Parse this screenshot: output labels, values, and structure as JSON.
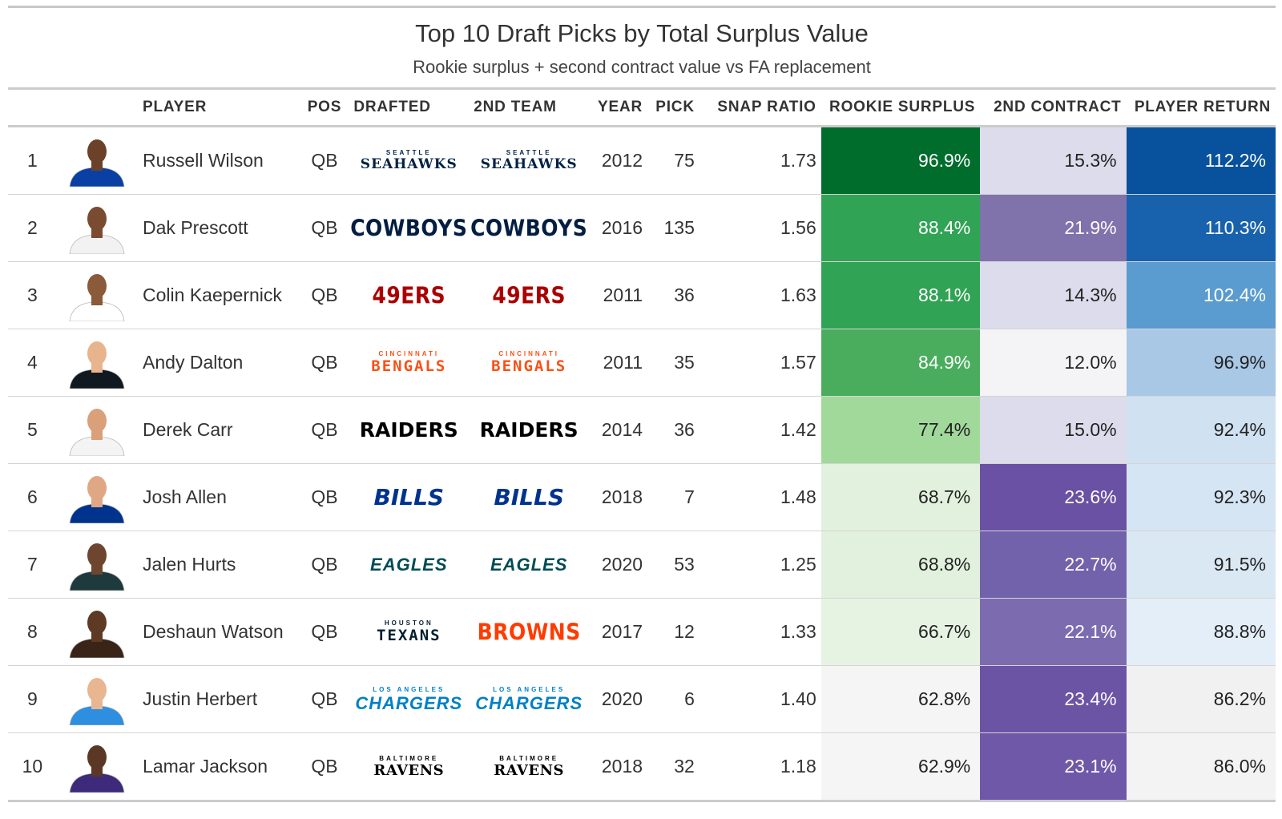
{
  "title": "Top 10 Draft Picks by Total Surplus Value",
  "subtitle": "Rookie surplus + second contract value vs FA replacement",
  "columns": {
    "player": "PLAYER",
    "pos": "POS",
    "drafted": "DRAFTED",
    "second_team": "2ND TEAM",
    "year": "YEAR",
    "pick": "PICK",
    "snap_ratio": "SNAP RATIO",
    "rookie_surplus": "ROOKIE SURPLUS",
    "second_contract": "2ND CONTRACT",
    "player_return": "PLAYER RETURN"
  },
  "teams": {
    "SEA": {
      "super": "SEATTLE",
      "main": "SEAHAWKS",
      "color": "#002244",
      "style": "smallcaps"
    },
    "DAL": {
      "super": "",
      "main": "COWBOYS",
      "color": "#041E42",
      "style": "block"
    },
    "SF": {
      "super": "",
      "main": "49ERS",
      "color": "#AA0000",
      "style": "block"
    },
    "CIN": {
      "super": "CINCINNATI",
      "main": "BENGALS",
      "color": "#FB4F14",
      "style": "wide"
    },
    "LV": {
      "super": "",
      "main": "RAIDERS",
      "color": "#000000",
      "style": "heavy"
    },
    "BUF": {
      "super": "",
      "main": "BILLS",
      "color": "#00338D",
      "style": "heavyitalic"
    },
    "PHI": {
      "super": "",
      "main": "EAGLES",
      "color": "#004C54",
      "style": "italic"
    },
    "HOU": {
      "super": "HOUSTON",
      "main": "TEXANS",
      "color": "#03202F",
      "style": "wide"
    },
    "CLE": {
      "super": "",
      "main": "BROWNS",
      "color": "#FF3C00",
      "style": "block"
    },
    "LAC": {
      "super": "LOS ANGELES",
      "main": "CHARGERS",
      "color": "#0080C6",
      "style": "italic"
    },
    "BAL": {
      "super": "BALTIMORE",
      "main": "RAVENS",
      "color": "#000000",
      "style": "serif"
    }
  },
  "rows": [
    {
      "rank": "1",
      "player": "Russell Wilson",
      "pos": "QB",
      "drafted": "SEA",
      "second_team": "SEA",
      "year": "2012",
      "pick": "75",
      "snap_ratio": "1.73",
      "rookie_surplus": "96.9%",
      "second_contract": "15.3%",
      "player_return": "112.2%",
      "rs_bg": "#006d2c",
      "rs_fg": "#ffffff",
      "sc_bg": "#dcdcec",
      "sc_fg": "#222222",
      "pr_bg": "#08519c",
      "pr_fg": "#ffffff",
      "jersey": "#0a3fa3",
      "skin": "#6b4129"
    },
    {
      "rank": "2",
      "player": "Dak Prescott",
      "pos": "QB",
      "drafted": "DAL",
      "second_team": "DAL",
      "year": "2016",
      "pick": "135",
      "snap_ratio": "1.56",
      "rookie_surplus": "88.4%",
      "second_contract": "21.9%",
      "player_return": "110.3%",
      "rs_bg": "#31a354",
      "rs_fg": "#ffffff",
      "sc_bg": "#8073ac",
      "sc_fg": "#ffffff",
      "pr_bg": "#1862ad",
      "pr_fg": "#ffffff",
      "jersey": "#f2f2f2",
      "skin": "#7a4b30"
    },
    {
      "rank": "3",
      "player": "Colin Kaepernick",
      "pos": "QB",
      "drafted": "SF",
      "second_team": "SF",
      "year": "2011",
      "pick": "36",
      "snap_ratio": "1.63",
      "rookie_surplus": "88.1%",
      "second_contract": "14.3%",
      "player_return": "102.4%",
      "rs_bg": "#31a354",
      "rs_fg": "#ffffff",
      "sc_bg": "#dcdcec",
      "sc_fg": "#222222",
      "pr_bg": "#5a9bd0",
      "pr_fg": "#ffffff",
      "jersey": "#ffffff",
      "skin": "#8a5a3a"
    },
    {
      "rank": "4",
      "player": "Andy Dalton",
      "pos": "QB",
      "drafted": "CIN",
      "second_team": "CIN",
      "year": "2011",
      "pick": "35",
      "snap_ratio": "1.57",
      "rookie_surplus": "84.9%",
      "second_contract": "12.0%",
      "player_return": "96.9%",
      "rs_bg": "#4aad5e",
      "rs_fg": "#ffffff",
      "sc_bg": "#f4f4f6",
      "sc_fg": "#222222",
      "pr_bg": "#a9c8e6",
      "pr_fg": "#222222",
      "jersey": "#101820",
      "skin": "#e8b48e"
    },
    {
      "rank": "5",
      "player": "Derek Carr",
      "pos": "QB",
      "drafted": "LV",
      "second_team": "LV",
      "year": "2014",
      "pick": "36",
      "snap_ratio": "1.42",
      "rookie_surplus": "77.4%",
      "second_contract": "15.0%",
      "player_return": "92.4%",
      "rs_bg": "#a1d99b",
      "rs_fg": "#222222",
      "sc_bg": "#dcdcec",
      "sc_fg": "#222222",
      "pr_bg": "#d0e1f2",
      "pr_fg": "#222222",
      "jersey": "#f4f4f4",
      "skin": "#d9a07a"
    },
    {
      "rank": "6",
      "player": "Josh Allen",
      "pos": "QB",
      "drafted": "BUF",
      "second_team": "BUF",
      "year": "2018",
      "pick": "7",
      "snap_ratio": "1.48",
      "rookie_surplus": "68.7%",
      "second_contract": "23.6%",
      "player_return": "92.3%",
      "rs_bg": "#e2f1dd",
      "rs_fg": "#222222",
      "sc_bg": "#6a51a3",
      "sc_fg": "#ffffff",
      "pr_bg": "#d6e5f3",
      "pr_fg": "#222222",
      "jersey": "#00338d",
      "skin": "#dfa783"
    },
    {
      "rank": "7",
      "player": "Jalen Hurts",
      "pos": "QB",
      "drafted": "PHI",
      "second_team": "PHI",
      "year": "2020",
      "pick": "53",
      "snap_ratio": "1.25",
      "rookie_surplus": "68.8%",
      "second_contract": "22.7%",
      "player_return": "91.5%",
      "rs_bg": "#e2f1dd",
      "rs_fg": "#222222",
      "sc_bg": "#7262ab",
      "sc_fg": "#ffffff",
      "pr_bg": "#dae8f4",
      "pr_fg": "#222222",
      "jersey": "#1f3a3d",
      "skin": "#6e4630"
    },
    {
      "rank": "8",
      "player": "Deshaun Watson",
      "pos": "QB",
      "drafted": "HOU",
      "second_team": "CLE",
      "year": "2017",
      "pick": "12",
      "snap_ratio": "1.33",
      "rookie_surplus": "66.7%",
      "second_contract": "22.1%",
      "player_return": "88.8%",
      "rs_bg": "#e6f3e3",
      "rs_fg": "#222222",
      "sc_bg": "#7d6bb0",
      "sc_fg": "#ffffff",
      "pr_bg": "#e4eef8",
      "pr_fg": "#222222",
      "jersey": "#3a2418",
      "skin": "#5e3a24"
    },
    {
      "rank": "9",
      "player": "Justin Herbert",
      "pos": "QB",
      "drafted": "LAC",
      "second_team": "LAC",
      "year": "2020",
      "pick": "6",
      "snap_ratio": "1.40",
      "rookie_surplus": "62.8%",
      "second_contract": "23.4%",
      "player_return": "86.2%",
      "rs_bg": "#f5f5f5",
      "rs_fg": "#222222",
      "sc_bg": "#6c54a5",
      "sc_fg": "#ffffff",
      "pr_bg": "#f1f1f1",
      "pr_fg": "#222222",
      "jersey": "#2e8fe0",
      "skin": "#e8b690"
    },
    {
      "rank": "10",
      "player": "Lamar Jackson",
      "pos": "QB",
      "drafted": "BAL",
      "second_team": "BAL",
      "year": "2018",
      "pick": "32",
      "snap_ratio": "1.18",
      "rookie_surplus": "62.9%",
      "second_contract": "23.1%",
      "player_return": "86.0%",
      "rs_bg": "#f5f5f5",
      "rs_fg": "#222222",
      "sc_bg": "#6f58a8",
      "sc_fg": "#ffffff",
      "pr_bg": "#f3f3f3",
      "pr_fg": "#222222",
      "jersey": "#3d2a7a",
      "skin": "#5a3825"
    }
  ]
}
